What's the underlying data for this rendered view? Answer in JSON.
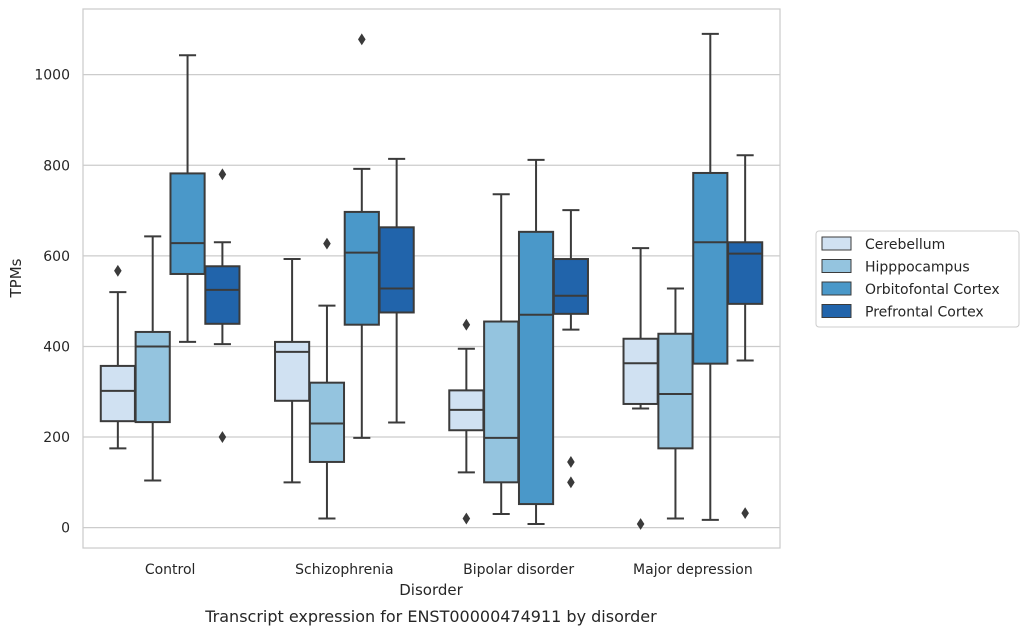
{
  "chart_data": {
    "type": "box",
    "title": "",
    "caption": "Transcript expression for ENST00000474911 by disorder",
    "xlabel": "Disorder",
    "ylabel": "TPMs",
    "ylim": [
      -45,
      1145
    ],
    "yticks": [
      0,
      200,
      400,
      600,
      800,
      1000
    ],
    "grid": "horizontal",
    "legend_position": "right",
    "categories": [
      "Control",
      "Schizophrenia",
      "Bipolar disorder",
      "Major depression"
    ],
    "series": [
      {
        "name": "Cerebellum",
        "color": "#d0e1f2",
        "boxes": [
          {
            "whislo": 175,
            "q1": 235,
            "med": 302,
            "q3": 357,
            "whishi": 520,
            "fliers": [
              567
            ]
          },
          {
            "whislo": 100,
            "q1": 280,
            "med": 388,
            "q3": 410,
            "whishi": 593,
            "fliers": []
          },
          {
            "whislo": 122,
            "q1": 215,
            "med": 260,
            "q3": 303,
            "whishi": 395,
            "fliers": [
              20,
              448
            ]
          },
          {
            "whislo": 263,
            "q1": 273,
            "med": 363,
            "q3": 417,
            "whishi": 617,
            "fliers": [
              8
            ]
          }
        ]
      },
      {
        "name": "Hipppocampus",
        "color": "#94c4df",
        "boxes": [
          {
            "whislo": 104,
            "q1": 233,
            "med": 400,
            "q3": 432,
            "whishi": 643,
            "fliers": []
          },
          {
            "whislo": 20,
            "q1": 145,
            "med": 230,
            "q3": 320,
            "whishi": 490,
            "fliers": [
              627
            ]
          },
          {
            "whislo": 30,
            "q1": 100,
            "med": 198,
            "q3": 455,
            "whishi": 736,
            "fliers": []
          },
          {
            "whislo": 20,
            "q1": 175,
            "med": 295,
            "q3": 428,
            "whishi": 528,
            "fliers": []
          }
        ]
      },
      {
        "name": "Orbitofontal Cortex",
        "color": "#4a98c9",
        "boxes": [
          {
            "whislo": 410,
            "q1": 560,
            "med": 628,
            "q3": 782,
            "whishi": 1043,
            "fliers": []
          },
          {
            "whislo": 198,
            "q1": 448,
            "med": 607,
            "q3": 697,
            "whishi": 792,
            "fliers": [
              1078
            ]
          },
          {
            "whislo": 8,
            "q1": 52,
            "med": 470,
            "q3": 653,
            "whishi": 812,
            "fliers": []
          },
          {
            "whislo": 17,
            "q1": 362,
            "med": 630,
            "q3": 783,
            "whishi": 1090,
            "fliers": []
          }
        ]
      },
      {
        "name": "Prefrontal Cortex",
        "color": "#2164ab",
        "boxes": [
          {
            "whislo": 405,
            "q1": 450,
            "med": 525,
            "q3": 577,
            "whishi": 630,
            "fliers": [
              200,
              780
            ]
          },
          {
            "whislo": 232,
            "q1": 475,
            "med": 528,
            "q3": 663,
            "whishi": 814,
            "fliers": []
          },
          {
            "whislo": 437,
            "q1": 472,
            "med": 512,
            "q3": 593,
            "whishi": 701,
            "fliers": [
              100,
              145
            ]
          },
          {
            "whislo": 369,
            "q1": 494,
            "med": 605,
            "q3": 630,
            "whishi": 822,
            "fliers": [
              32
            ]
          }
        ]
      }
    ]
  }
}
